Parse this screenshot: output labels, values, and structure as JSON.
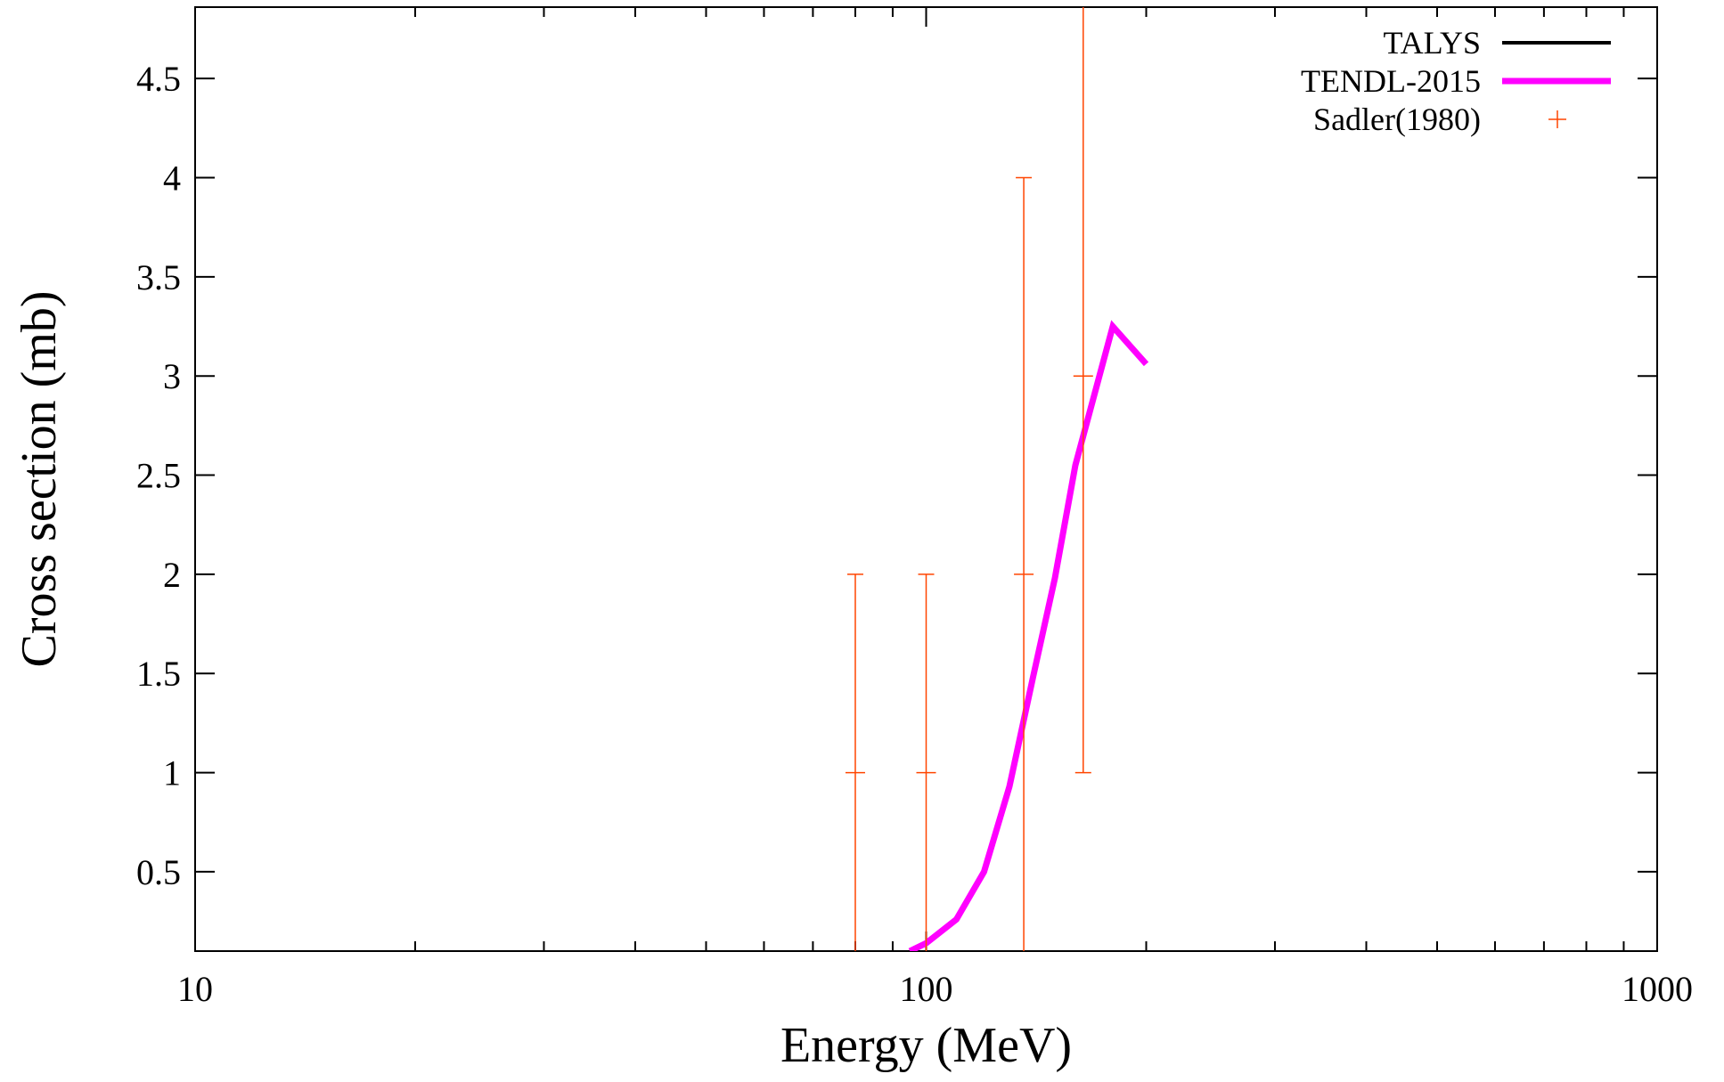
{
  "chart_data": {
    "type": "line",
    "xlabel": "Energy (MeV)",
    "ylabel": "Cross section (mb)",
    "xscale": "log",
    "xlim": [
      10,
      1000
    ],
    "ylim": [
      0.1,
      4.86
    ],
    "x_ticks": [
      {
        "value": 10,
        "label": "10"
      },
      {
        "value": 100,
        "label": "100"
      },
      {
        "value": 1000,
        "label": "1000"
      }
    ],
    "y_ticks": [
      {
        "value": 0.5,
        "label": "0.5"
      },
      {
        "value": 1,
        "label": "1"
      },
      {
        "value": 1.5,
        "label": "1.5"
      },
      {
        "value": 2,
        "label": "2"
      },
      {
        "value": 2.5,
        "label": "2.5"
      },
      {
        "value": 3,
        "label": "3"
      },
      {
        "value": 3.5,
        "label": "3.5"
      },
      {
        "value": 4,
        "label": "4"
      },
      {
        "value": 4.5,
        "label": "4.5"
      }
    ],
    "grid": false,
    "legend_position": "top-right",
    "series": [
      {
        "name": "TALYS",
        "kind": "line",
        "color": "#000000",
        "points": []
      },
      {
        "name": "TENDL-2015",
        "kind": "line",
        "color": "#ff00ff",
        "points": [
          {
            "x": 95,
            "y": 0.1
          },
          {
            "x": 100,
            "y": 0.14
          },
          {
            "x": 110,
            "y": 0.26
          },
          {
            "x": 120,
            "y": 0.5
          },
          {
            "x": 130,
            "y": 0.93
          },
          {
            "x": 140,
            "y": 1.48
          },
          {
            "x": 150,
            "y": 1.98
          },
          {
            "x": 160,
            "y": 2.55
          },
          {
            "x": 180,
            "y": 3.25
          },
          {
            "x": 200,
            "y": 3.06
          }
        ]
      },
      {
        "name": "Sadler(1980)",
        "kind": "errorbar",
        "color": "#ff4500",
        "points": [
          {
            "x": 80,
            "y": 1,
            "ylow": 0,
            "yhigh": 2
          },
          {
            "x": 100,
            "y": 1,
            "ylow": 0,
            "yhigh": 2
          },
          {
            "x": 136,
            "y": 2,
            "ylow": 0,
            "yhigh": 4
          },
          {
            "x": 164,
            "y": 3,
            "ylow": 1,
            "yhigh": 5
          }
        ]
      }
    ]
  }
}
